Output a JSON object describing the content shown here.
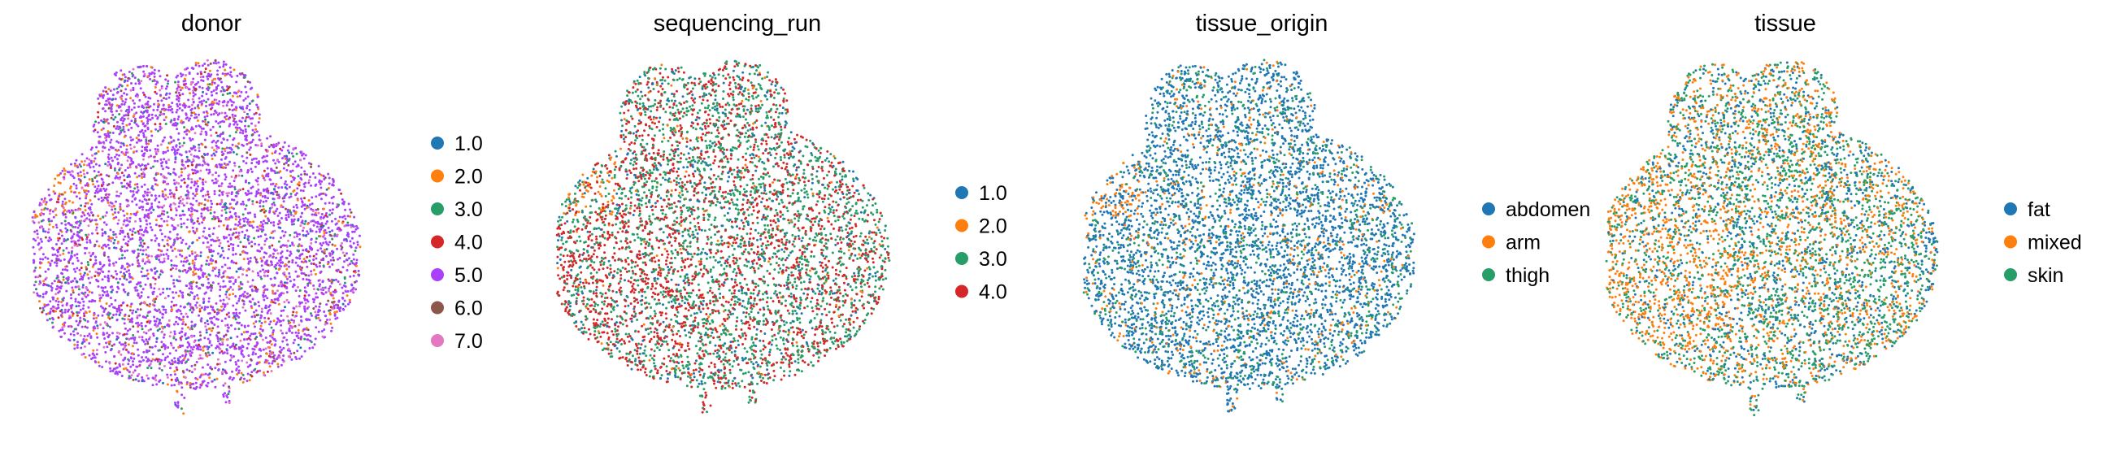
{
  "chart_data": [
    {
      "type": "scatter",
      "title": "donor",
      "legend": {
        "placement": "right",
        "entries": [
          {
            "label": "1.0",
            "color": "#1f77b4"
          },
          {
            "label": "2.0",
            "color": "#ff7f0e"
          },
          {
            "label": "3.0",
            "color": "#279e68"
          },
          {
            "label": "4.0",
            "color": "#d62728"
          },
          {
            "label": "5.0",
            "color": "#aa40fc"
          },
          {
            "label": "6.0",
            "color": "#8c564b"
          },
          {
            "label": "7.0",
            "color": "#e377c2"
          }
        ]
      },
      "dominant_series": "5.0",
      "grid": false,
      "axes_visible": false
    },
    {
      "type": "scatter",
      "title": "sequencing_run",
      "legend": {
        "placement": "right",
        "entries": [
          {
            "label": "1.0",
            "color": "#1f77b4"
          },
          {
            "label": "2.0",
            "color": "#ff7f0e"
          },
          {
            "label": "3.0",
            "color": "#279e68"
          },
          {
            "label": "4.0",
            "color": "#d62728"
          }
        ]
      },
      "dominant_series": "3.0",
      "grid": false,
      "axes_visible": false
    },
    {
      "type": "scatter",
      "title": "tissue_origin",
      "legend": {
        "placement": "right",
        "entries": [
          {
            "label": "abdomen",
            "color": "#1f77b4"
          },
          {
            "label": "arm",
            "color": "#ff7f0e"
          },
          {
            "label": "thigh",
            "color": "#279e68"
          }
        ]
      },
      "dominant_series": "abdomen",
      "grid": false,
      "axes_visible": false
    },
    {
      "type": "scatter",
      "title": "tissue",
      "legend": {
        "placement": "right",
        "entries": [
          {
            "label": "fat",
            "color": "#1f77b4"
          },
          {
            "label": "mixed",
            "color": "#ff7f0e"
          },
          {
            "label": "skin",
            "color": "#279e68"
          }
        ]
      },
      "dominant_series": "skin",
      "grid": false,
      "axes_visible": false
    }
  ]
}
